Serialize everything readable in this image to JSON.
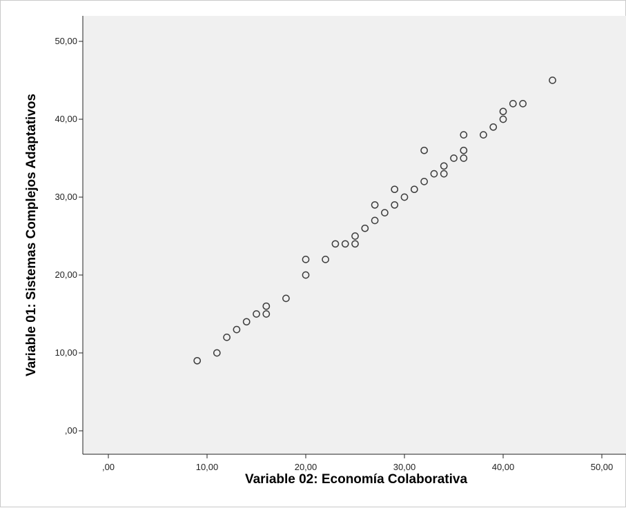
{
  "chart_data": {
    "type": "scatter",
    "xlabel": "Variable 02: Economía Colaborativa",
    "ylabel": "Variable 01: Sistemas Complejos Adaptativos",
    "xlim": [
      -2.5,
      52.5
    ],
    "ylim": [
      -2.5,
      52.5
    ],
    "x_ticks": [
      0,
      10,
      20,
      30,
      40,
      50
    ],
    "y_ticks": [
      0,
      10,
      20,
      30,
      40,
      50
    ],
    "x_tick_labels": [
      ",00",
      "10,00",
      "20,00",
      "30,00",
      "40,00",
      "50,00"
    ],
    "y_tick_labels": [
      ",00",
      "10,00",
      "20,00",
      "30,00",
      "40,00",
      "50,00"
    ],
    "grid": false,
    "colors": {
      "plot_background": "#f0f0f0",
      "marker_edge": "#3c3c3c",
      "axis": "#222222"
    },
    "points": [
      {
        "x": 9,
        "y": 9
      },
      {
        "x": 11,
        "y": 10
      },
      {
        "x": 12,
        "y": 12
      },
      {
        "x": 13,
        "y": 13
      },
      {
        "x": 14,
        "y": 14
      },
      {
        "x": 15,
        "y": 15
      },
      {
        "x": 16,
        "y": 15
      },
      {
        "x": 16,
        "y": 16
      },
      {
        "x": 18,
        "y": 17
      },
      {
        "x": 20,
        "y": 20
      },
      {
        "x": 20,
        "y": 22
      },
      {
        "x": 22,
        "y": 22
      },
      {
        "x": 23,
        "y": 24
      },
      {
        "x": 24,
        "y": 24
      },
      {
        "x": 25,
        "y": 24
      },
      {
        "x": 25,
        "y": 25
      },
      {
        "x": 26,
        "y": 26
      },
      {
        "x": 27,
        "y": 27
      },
      {
        "x": 27,
        "y": 29
      },
      {
        "x": 28,
        "y": 28
      },
      {
        "x": 29,
        "y": 29
      },
      {
        "x": 29,
        "y": 31
      },
      {
        "x": 30,
        "y": 30
      },
      {
        "x": 31,
        "y": 31
      },
      {
        "x": 32,
        "y": 32
      },
      {
        "x": 32,
        "y": 36
      },
      {
        "x": 33,
        "y": 33
      },
      {
        "x": 34,
        "y": 33
      },
      {
        "x": 34,
        "y": 34
      },
      {
        "x": 35,
        "y": 35
      },
      {
        "x": 36,
        "y": 35
      },
      {
        "x": 36,
        "y": 36
      },
      {
        "x": 36,
        "y": 38
      },
      {
        "x": 38,
        "y": 38
      },
      {
        "x": 39,
        "y": 39
      },
      {
        "x": 40,
        "y": 40
      },
      {
        "x": 40,
        "y": 41
      },
      {
        "x": 41,
        "y": 42
      },
      {
        "x": 42,
        "y": 42
      },
      {
        "x": 45,
        "y": 45
      }
    ]
  }
}
